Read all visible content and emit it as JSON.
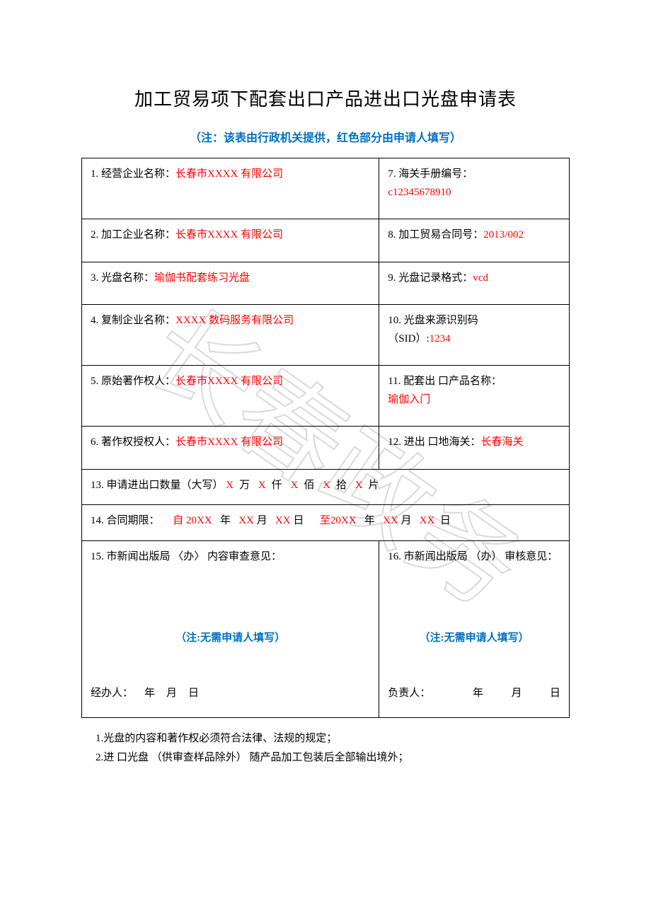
{
  "title": "加工贸易项下配套出口产品进出口光盘申请表",
  "subtitle": "（注：该表由行政机关提供，红色部分由申请人填写）",
  "colors": {
    "red": "#ff0000",
    "blue": "#0070c0",
    "black": "#000000",
    "border": "#000000",
    "watermark": "#d0d0d0"
  },
  "rows": {
    "r1": {
      "label": "1. 经营企业名称：",
      "value": "长春市XXXX 有限公司"
    },
    "r2": {
      "label": "2. 加工企业名称：",
      "value": "长春市XXXX 有限公司"
    },
    "r3": {
      "label": "3. 光盘名称：",
      "value": "瑜伽书配套练习光盘"
    },
    "r4": {
      "label": "4. 复制企业名称：",
      "value": "XXXX 数码服务有限公司"
    },
    "r5": {
      "label": "5. 原始著作权人：",
      "value": "长春市XXXX 有限公司"
    },
    "r6": {
      "label": "6. 著作权授权人：",
      "value": "长春市XXXX 有限公司"
    },
    "r7": {
      "label": "7. 海关手册编号：",
      "value": "c12345678910"
    },
    "r8": {
      "label": "8. 加工贸易合同号：",
      "value": "2013/002"
    },
    "r9": {
      "label": "9. 光盘记录格式：",
      "value": "vcd"
    },
    "r10": {
      "label1": "10. 光盘来源识别码",
      "label2": "（SID）:",
      "value": "1234"
    },
    "r11": {
      "label": "11. 配套出 口产品名称：",
      "value": "瑜伽入门"
    },
    "r12": {
      "label": "12. 进出 口地海关：",
      "value": "长春海关"
    }
  },
  "row13": {
    "label": "13. 申请进出口数量（大写）",
    "x": "X",
    "u_wan": "万",
    "u_qian": "仟",
    "u_bai": "佰",
    "u_shi": "拾",
    "u_pian": "片"
  },
  "row14": {
    "label": "14. 合同期限：",
    "from_prefix": "自",
    "year20xx": "20XX",
    "y": "年",
    "xx": "XX",
    "m": "月",
    "d": "日",
    "to_prefix": "至",
    "end_d": "日"
  },
  "row15": {
    "label": "15. 市新闻出版局 〈办〉 内容审查意见：",
    "note": "（注:无需申请人填写）",
    "sign_role": "经办人：",
    "y": "年",
    "m": "月",
    "d": "日"
  },
  "row16": {
    "label": "16. 市新闻出版局 （办） 审核意见：",
    "note": "（注:无需申请人填写）",
    "sign_role": "负责人：",
    "y": "年",
    "m": "月",
    "d": "日"
  },
  "footer": {
    "n1": "1.光盘的内容和著作权必须符合法律、法规的规定；",
    "n2": "2.进 口光盘 （供审查样品除外） 随产品加工包装后全部输出境外；"
  }
}
